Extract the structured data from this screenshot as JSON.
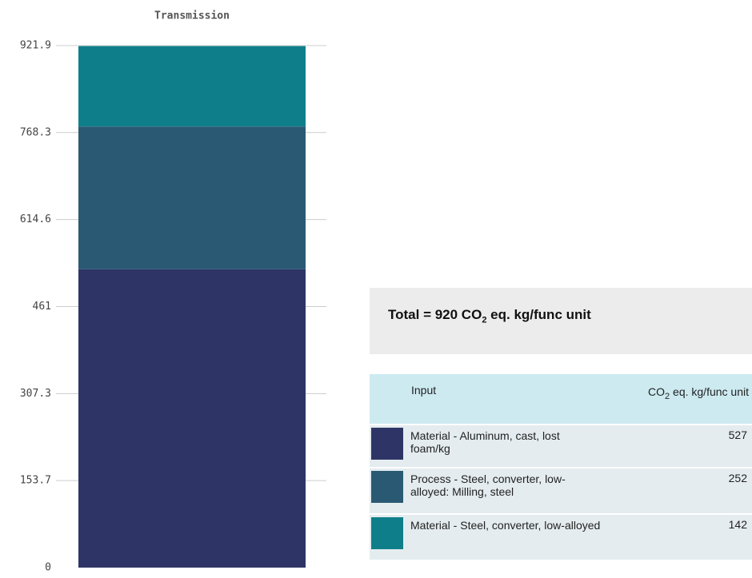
{
  "chart_data": {
    "type": "bar",
    "stacked": true,
    "title": "Transmission",
    "categories": [
      "Transmission"
    ],
    "series": [
      {
        "name": "Material - Aluminum, cast, lost foam/kg",
        "color": "#2e3566",
        "values": [
          527
        ]
      },
      {
        "name": "Process - Steel, converter, low-alloyed: Milling, steel",
        "color": "#2a5a73",
        "values": [
          252
        ]
      },
      {
        "name": "Material - Steel, converter, low-alloyed",
        "color": "#0e7f8a",
        "values": [
          142
        ]
      }
    ],
    "ylim": [
      0,
      921.9
    ],
    "yticks": [
      0,
      153.7,
      307.3,
      461,
      614.6,
      768.3,
      921.9
    ],
    "grid": true
  },
  "summary": {
    "total": [
      "Total = 920 CO",
      "2",
      " eq. kg/func unit"
    ]
  },
  "table": {
    "header": {
      "input": "Input",
      "value": [
        "CO",
        "2",
        " eq. kg/func unit"
      ]
    }
  }
}
